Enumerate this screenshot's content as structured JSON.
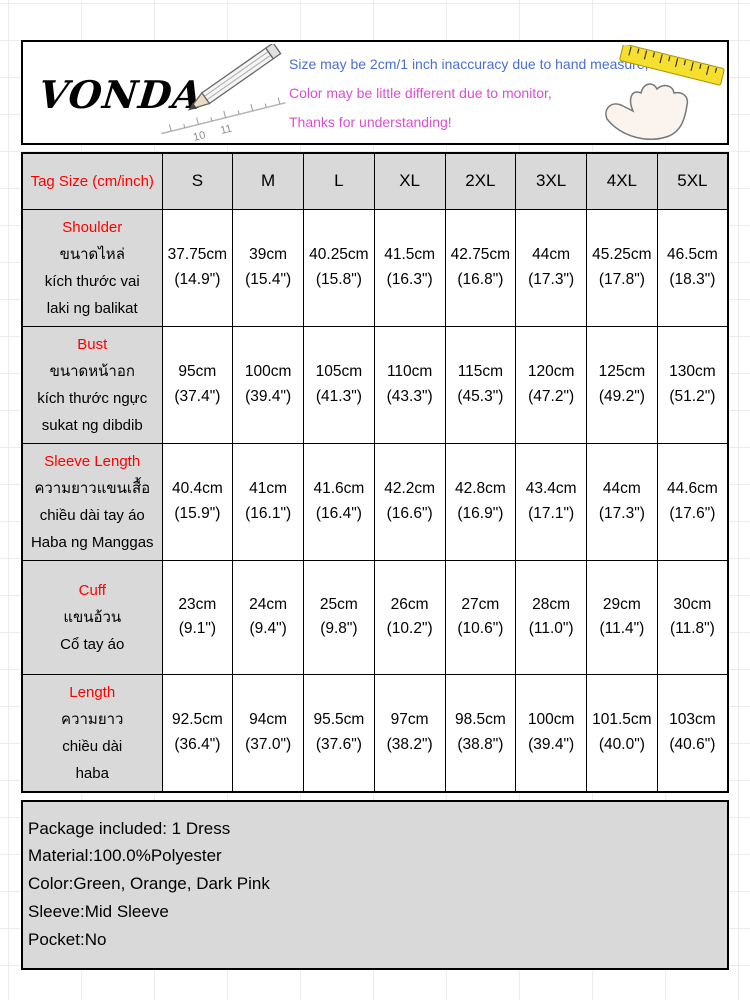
{
  "header": {
    "brand": "VONDA",
    "notes": [
      "Size may be 2cm/1 inch inaccuracy due to hand measure,",
      "Color may be little different due to monitor,",
      "Thanks for understanding!"
    ],
    "ruler_marks": [
      "10",
      "11"
    ]
  },
  "table": {
    "corner_label": "Tag Size (cm/inch)",
    "sizes": [
      "S",
      "M",
      "L",
      "XL",
      "2XL",
      "3XL",
      "4XL",
      "5XL"
    ],
    "rows": [
      {
        "label": "Shoulder",
        "translations": "ขนาดไหล่\nkích thước vai\nlaki ng balikat",
        "values": [
          "37.75cm\n(14.9\")",
          "39cm\n(15.4\")",
          "40.25cm\n(15.8\")",
          "41.5cm\n(16.3\")",
          "42.75cm\n(16.8\")",
          "44cm\n(17.3\")",
          "45.25cm\n(17.8\")",
          "46.5cm\n(18.3\")"
        ]
      },
      {
        "label": "Bust",
        "translations": "ขนาดหน้าอก\nkích thước ngực\nsukat ng dibdib",
        "values": [
          "95cm\n(37.4\")",
          "100cm\n(39.4\")",
          "105cm\n(41.3\")",
          "110cm\n(43.3\")",
          "115cm\n(45.3\")",
          "120cm\n(47.2\")",
          "125cm\n(49.2\")",
          "130cm\n(51.2\")"
        ]
      },
      {
        "label": "Sleeve Length",
        "translations": "ความยาวแขนเสื้อ\nchiều dài tay áo\nHaba ng Manggas",
        "values": [
          "40.4cm\n(15.9\")",
          "41cm\n(16.1\")",
          "41.6cm\n(16.4\")",
          "42.2cm\n(16.6\")",
          "42.8cm\n(16.9\")",
          "43.4cm\n(17.1\")",
          "44cm\n(17.3\")",
          "44.6cm\n(17.6\")"
        ]
      },
      {
        "label": "Cuff",
        "translations": "แขนอ้วน\nCổ tay áo",
        "values": [
          "23cm\n(9.1\")",
          "24cm\n(9.4\")",
          "25cm\n(9.8\")",
          "26cm\n(10.2\")",
          "27cm\n(10.6\")",
          "28cm\n(11.0\")",
          "29cm\n(11.4\")",
          "30cm\n(11.8\")"
        ]
      },
      {
        "label": "Length",
        "translations": "ความยาว\nchiều dài\nhaba",
        "values": [
          "92.5cm\n(36.4\")",
          "94cm\n(37.0\")",
          "95.5cm\n(37.6\")",
          "97cm\n(38.2\")",
          "98.5cm\n(38.8\")",
          "100cm\n(39.4\")",
          "101.5cm\n(40.0\")",
          "103cm\n(40.6\")"
        ]
      }
    ]
  },
  "footer": {
    "lines": [
      "Package included: 1 Dress",
      "Material:100.0%Polyester",
      "Color:Green, Orange, Dark Pink",
      "Sleeve:Mid Sleeve",
      "Pocket:No"
    ]
  },
  "colors": {
    "label_red": "#ff0000",
    "note_blue": "#4a6fd8",
    "note_magenta": "#d94fd0",
    "cell_gray": "#d9d9d9",
    "tape_yellow": "#f6df2e"
  }
}
